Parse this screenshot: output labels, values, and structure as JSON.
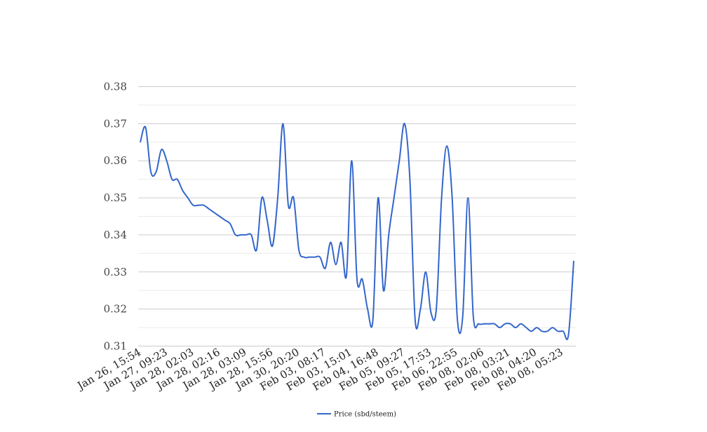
{
  "chart_data": {
    "type": "line",
    "title": "",
    "xlabel": "",
    "ylabel": "",
    "ylim": [
      0.31,
      0.38
    ],
    "yticks": [
      "0.38",
      "0.37",
      "0.36",
      "0.35",
      "0.34",
      "0.33",
      "0.32",
      "0.31"
    ],
    "x_tick_labels": [
      "Jan 26, 15:54",
      "Jan 27, 09:23",
      "Jan 28, 02:03",
      "Jan 28, 02:16",
      "Jan 28, 03:09",
      "Jan 28, 15:56",
      "Jan 30, 20:20",
      "Feb 03, 08:17",
      "Feb 03, 15:01",
      "Feb 04, 16:48",
      "Feb 05, 09:27",
      "Feb 05, 17:53",
      "Feb 06, 22:55",
      "Feb 08, 02:06",
      "Feb 08, 03:21",
      "Feb 08, 04:20",
      "Feb 08, 05:23"
    ],
    "grid": true,
    "legend_position": "bottom",
    "series": [
      {
        "name": "Price (sbd/steem)",
        "color": "#3366cc",
        "values": [
          0.365,
          0.369,
          0.357,
          0.357,
          0.363,
          0.36,
          0.355,
          0.355,
          0.352,
          0.35,
          0.348,
          0.348,
          0.348,
          0.347,
          0.346,
          0.345,
          0.344,
          0.343,
          0.34,
          0.34,
          0.34,
          0.34,
          0.336,
          0.35,
          0.344,
          0.337,
          0.35,
          0.37,
          0.348,
          0.35,
          0.336,
          0.334,
          0.334,
          0.334,
          0.334,
          0.331,
          0.338,
          0.332,
          0.338,
          0.329,
          0.36,
          0.328,
          0.328,
          0.32,
          0.317,
          0.35,
          0.325,
          0.34,
          0.35,
          0.36,
          0.37,
          0.355,
          0.317,
          0.32,
          0.33,
          0.319,
          0.32,
          0.35,
          0.364,
          0.35,
          0.317,
          0.318,
          0.35,
          0.318,
          0.316,
          0.316,
          0.316,
          0.316,
          0.315,
          0.316,
          0.316,
          0.315,
          0.316,
          0.315,
          0.314,
          0.315,
          0.314,
          0.314,
          0.315,
          0.314,
          0.314,
          0.313,
          0.333
        ]
      }
    ]
  }
}
